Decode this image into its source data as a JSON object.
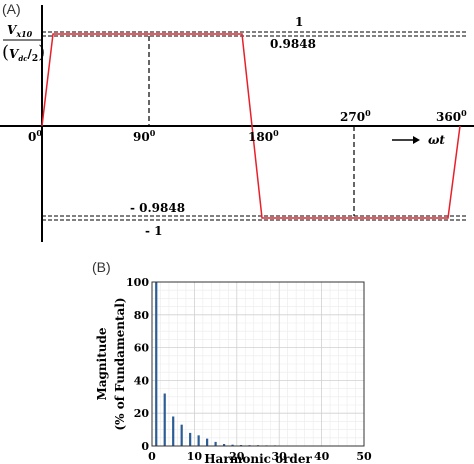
{
  "panel_a": {
    "label": "(A)",
    "ylabel_num": "V",
    "ylabel_num_sub": "x10",
    "ylabel_den": "V",
    "ylabel_den_sub": "dc",
    "ylabel_den_div": "2",
    "level_pos_one": "1",
    "level_pos": "0.9848",
    "level_neg": "- 0.9848",
    "level_neg_one": "- 1",
    "tick_0": "0",
    "tick_90": "90",
    "tick_180": "180",
    "tick_270": "270",
    "tick_360": "360",
    "degree_sup": "0",
    "axis_var": "ωt"
  },
  "panel_b": {
    "label": "(B)"
  },
  "chart_data": [
    {
      "type": "line",
      "series": [
        {
          "angle_deg": [
            0,
            10,
            165,
            177,
            357,
            360
          ],
          "values": [
            0,
            0.9848,
            0.9848,
            -0.9848,
            -0.9848,
            0
          ]
        }
      ],
      "reference_levels": [
        1,
        0.9848,
        -0.9848,
        -1
      ],
      "marked_angles_deg": [
        90,
        270
      ],
      "x_ticks": [
        "0",
        "90",
        "180",
        "270",
        "360"
      ],
      "colors": {
        "waveform": "#e8202a",
        "reference": "#000000"
      },
      "grid": false
    },
    {
      "type": "bar",
      "xlabel": "Harmonic order",
      "ylabel": "Magnitude",
      "ylabel2": "(% of Fundamental)",
      "x": [
        1,
        3,
        5,
        7,
        9,
        11,
        13,
        15,
        17,
        19,
        21,
        23,
        25,
        27,
        29,
        31,
        33,
        35,
        37,
        39,
        41,
        43,
        45,
        47,
        49
      ],
      "values": [
        100,
        32,
        18,
        13,
        8,
        6.5,
        4.5,
        2.5,
        1.2,
        0.8,
        0.6,
        0.5,
        0.5,
        0.4,
        0.4,
        0.3,
        0.3,
        0.3,
        0.3,
        0.3,
        0.2,
        0.2,
        0.2,
        0.2,
        0.2
      ],
      "xlim": [
        0,
        50
      ],
      "ylim": [
        0,
        100
      ],
      "xticks": [
        0,
        10,
        20,
        30,
        40,
        50
      ],
      "yticks": [
        0,
        20,
        40,
        60,
        80,
        100
      ],
      "grid": true,
      "colors": {
        "bar": "#2a5c96"
      }
    }
  ]
}
